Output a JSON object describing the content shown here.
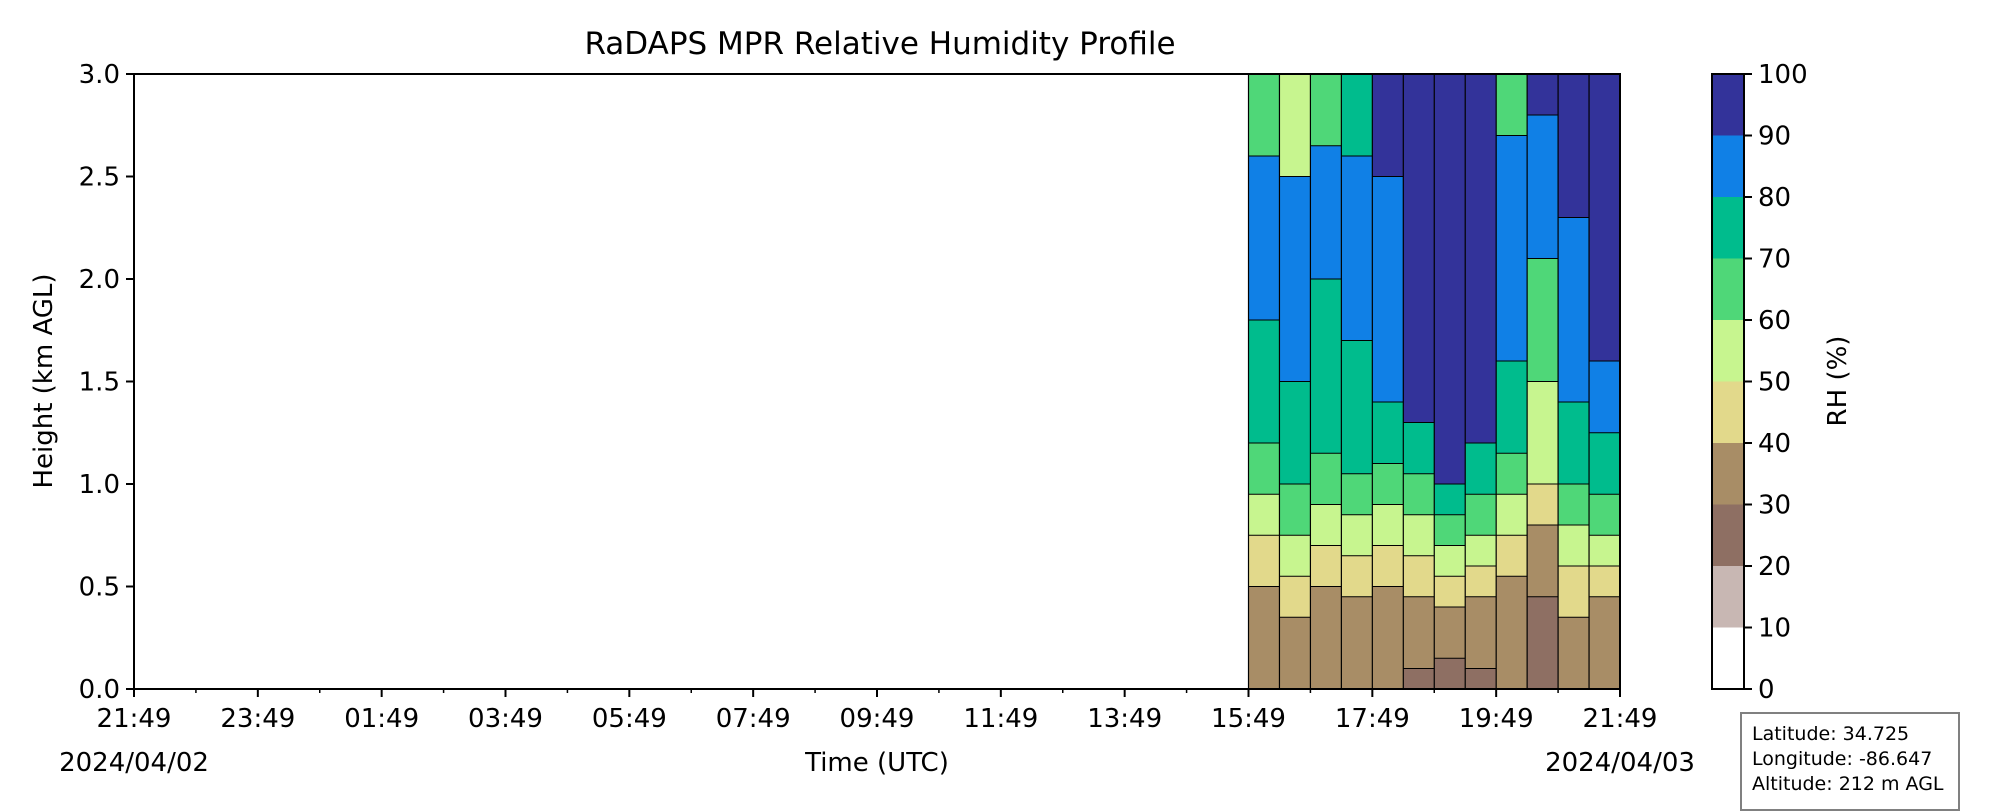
{
  "chart_data": {
    "type": "heatmap",
    "subtype": "filled-contour",
    "title": "RaDAPS MPR Relative Humidity Profile",
    "xlabel": "Time (UTC)",
    "ylabel": "Height (km AGL)",
    "x_tick_labels": [
      "21:49",
      "23:49",
      "01:49",
      "03:49",
      "05:49",
      "07:49",
      "09:49",
      "11:49",
      "13:49",
      "15:49",
      "17:49",
      "19:49",
      "21:49"
    ],
    "start_date": "2024/04/02",
    "end_date": "2024/04/03",
    "ylim": [
      0,
      3.0
    ],
    "y_ticks": [
      "0.0",
      "0.5",
      "1.0",
      "1.5",
      "2.0",
      "2.5",
      "3.0"
    ],
    "colorbar": {
      "label": "RH (%)",
      "levels": [
        0,
        10,
        20,
        30,
        40,
        50,
        60,
        70,
        80,
        90,
        100
      ],
      "colors": [
        "#ffffff",
        "#c8b7b3",
        "#8e6f63",
        "#a88d66",
        "#e2d98b",
        "#c7f58f",
        "#4fd778",
        "#00bc8d",
        "#1080e6",
        "#33339a"
      ]
    },
    "data_start_time": "15:49",
    "profile_columns": [
      {
        "time": "15:49",
        "bounds": [
          0,
          0.5,
          0.75,
          0.95,
          1.2,
          1.8,
          2.6,
          3.0
        ],
        "band_colors": [
          3,
          4,
          5,
          6,
          7,
          8,
          6
        ]
      },
      {
        "time": "16:19",
        "bounds": [
          0,
          0.35,
          0.55,
          0.75,
          1.0,
          1.5,
          2.5,
          3.0
        ],
        "band_colors": [
          3,
          4,
          5,
          6,
          7,
          8,
          5
        ]
      },
      {
        "time": "16:49",
        "bounds": [
          0,
          0.5,
          0.7,
          0.9,
          1.15,
          2.0,
          2.65,
          3.0
        ],
        "band_colors": [
          3,
          4,
          5,
          6,
          7,
          8,
          6
        ]
      },
      {
        "time": "17:19",
        "bounds": [
          0,
          0.45,
          0.65,
          0.85,
          1.05,
          1.7,
          2.6,
          3.0
        ],
        "band_colors": [
          3,
          4,
          5,
          6,
          7,
          8,
          7
        ]
      },
      {
        "time": "17:49",
        "bounds": [
          0,
          0.5,
          0.7,
          0.9,
          1.1,
          1.4,
          2.5,
          3.0
        ],
        "band_colors": [
          3,
          4,
          5,
          6,
          7,
          8,
          9
        ]
      },
      {
        "time": "18:19",
        "bounds": [
          0,
          0.1,
          0.45,
          0.65,
          0.85,
          1.05,
          1.3,
          3.0
        ],
        "band_colors": [
          2,
          3,
          4,
          5,
          6,
          7,
          9
        ]
      },
      {
        "time": "18:49",
        "bounds": [
          0,
          0.15,
          0.4,
          0.55,
          0.7,
          0.85,
          1.0,
          3.0
        ],
        "band_colors": [
          2,
          3,
          4,
          5,
          6,
          7,
          9
        ]
      },
      {
        "time": "19:19",
        "bounds": [
          0,
          0.1,
          0.45,
          0.6,
          0.75,
          0.95,
          1.2,
          3.0
        ],
        "band_colors": [
          2,
          3,
          4,
          5,
          6,
          7,
          9
        ]
      },
      {
        "time": "19:49",
        "bounds": [
          0,
          0.55,
          0.75,
          0.95,
          1.15,
          1.6,
          2.7,
          3.0
        ],
        "band_colors": [
          3,
          4,
          5,
          6,
          7,
          8,
          6
        ]
      },
      {
        "time": "20:19",
        "bounds": [
          0,
          0.45,
          0.8,
          1.0,
          1.5,
          2.1,
          2.8,
          3.0
        ],
        "band_colors": [
          2,
          3,
          4,
          5,
          6,
          8,
          9
        ]
      },
      {
        "time": "20:49",
        "bounds": [
          0,
          0.35,
          0.6,
          0.8,
          1.0,
          1.4,
          2.3,
          3.0
        ],
        "band_colors": [
          3,
          4,
          5,
          6,
          7,
          8,
          9
        ]
      },
      {
        "time": "21:19",
        "bounds": [
          0,
          0.45,
          0.6,
          0.75,
          0.95,
          1.25,
          1.6,
          3.0
        ],
        "band_colors": [
          3,
          4,
          5,
          6,
          7,
          8,
          9
        ]
      }
    ]
  },
  "station_info": {
    "latitude": "Latitude: 34.725",
    "longitude": "Longitude: -86.647",
    "altitude": "Altitude: 212 m AGL"
  }
}
